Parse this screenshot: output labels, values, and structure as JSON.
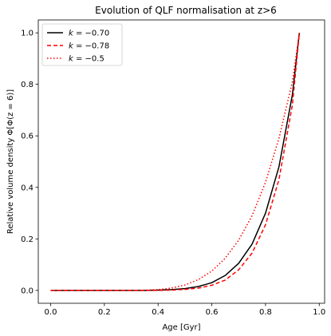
{
  "chart_data": {
    "type": "line",
    "title": "Evolution of QLF normalisation at z>6",
    "xlabel": "Age [Gyr]",
    "ylabel": "Relative volume density Φ[Φ(z = 6)]",
    "xlim": [
      -0.046,
      1.02
    ],
    "ylim": [
      -0.05,
      1.05
    ],
    "xticks": [
      0.0,
      0.2,
      0.4,
      0.6,
      0.8,
      1.0
    ],
    "xtick_labels": [
      "0.0",
      "0.2",
      "0.4",
      "0.6",
      "0.8",
      "1.0"
    ],
    "yticks": [
      0.0,
      0.2,
      0.4,
      0.6,
      0.8,
      1.0
    ],
    "ytick_labels": [
      "0.0",
      "0.2",
      "0.4",
      "0.6",
      "0.8",
      "1.0"
    ],
    "grid": false,
    "legend_position": "top-left",
    "x": [
      0.0,
      0.1,
      0.2,
      0.3,
      0.35,
      0.4,
      0.45,
      0.5,
      0.55,
      0.6,
      0.65,
      0.7,
      0.75,
      0.8,
      0.85,
      0.9,
      0.926
    ],
    "series": [
      {
        "name_prefix": "k",
        "name_value": "= −0.70",
        "color": "#000000",
        "dash": "solid",
        "values": [
          0.0,
          0.0,
          0.0,
          0.0,
          0.0,
          0.001,
          0.003,
          0.007,
          0.015,
          0.03,
          0.058,
          0.105,
          0.18,
          0.3,
          0.48,
          0.76,
          1.0
        ]
      },
      {
        "name_prefix": "k",
        "name_value": "= −0.78",
        "color": "#ff0000",
        "dash": "dashed",
        "values": [
          0.0,
          0.0,
          0.0,
          0.0,
          0.0,
          0.0,
          0.001,
          0.004,
          0.009,
          0.02,
          0.04,
          0.08,
          0.145,
          0.255,
          0.43,
          0.72,
          1.0
        ]
      },
      {
        "name_prefix": "k",
        "name_value": "= −0.5",
        "color": "#ff0000",
        "dash": "dotted",
        "values": [
          0.0,
          0.0,
          0.0,
          0.0,
          0.001,
          0.003,
          0.009,
          0.021,
          0.042,
          0.075,
          0.125,
          0.195,
          0.29,
          0.42,
          0.59,
          0.81,
          1.0
        ]
      }
    ]
  }
}
